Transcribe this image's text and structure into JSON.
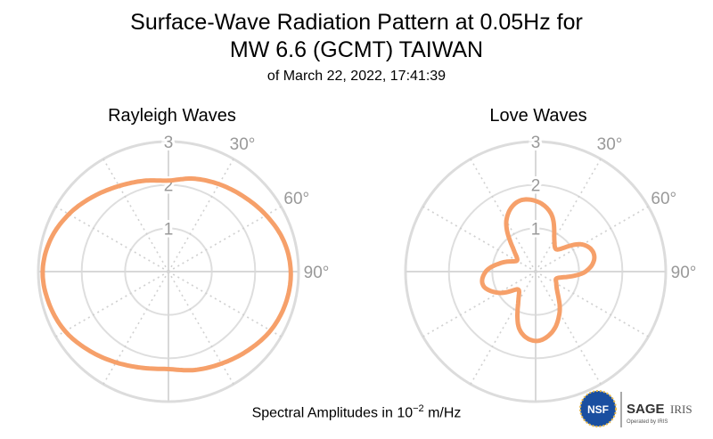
{
  "title_line1": "Surface-Wave Radiation Pattern at 0.05Hz for",
  "title_line2": "MW 6.6 (GCMT) TAIWAN",
  "subtitle": "of March 22, 2022, 17:41:39",
  "footer_prefix": "Spectral Amplitudes in 10",
  "footer_exp": "−2",
  "footer_suffix": " m/Hz",
  "logos": {
    "nsf": "NSF",
    "sage": "SAGE",
    "iris": "IRIS",
    "operated": "Operated by IRIS"
  },
  "colors": {
    "line": "#f6a06a",
    "grid_major": "#d8d8d8",
    "grid_minor": "#d0d0d0",
    "label": "#999999"
  },
  "chart_data": [
    {
      "type": "polar-line",
      "title": "Rayleigh Waves",
      "radial_ticks": [
        "1",
        "2",
        "3"
      ],
      "rmax": 3,
      "angle_ticks": [
        "30°",
        "60°",
        "90°"
      ],
      "azimuth_deg": [
        0,
        15,
        30,
        45,
        60,
        75,
        90,
        105,
        120,
        135,
        150,
        165,
        180,
        195,
        210,
        225,
        240,
        255,
        270,
        285,
        300,
        315,
        330,
        345
      ],
      "amplitude": [
        2.1,
        2.22,
        2.33,
        2.45,
        2.6,
        2.75,
        2.82,
        2.8,
        2.72,
        2.58,
        2.45,
        2.35,
        2.25,
        2.3,
        2.42,
        2.58,
        2.75,
        2.85,
        2.9,
        2.82,
        2.65,
        2.45,
        2.28,
        2.17
      ]
    },
    {
      "type": "polar-line",
      "title": "Love Waves",
      "radial_ticks": [
        "1",
        "2",
        "3"
      ],
      "rmax": 3,
      "angle_ticks": [
        "30°",
        "60°",
        "90°"
      ],
      "azimuth_deg": [
        0,
        15,
        30,
        45,
        60,
        75,
        90,
        105,
        120,
        135,
        150,
        165,
        180,
        195,
        210,
        225,
        240,
        255,
        270,
        285,
        300,
        315,
        330,
        345
      ],
      "amplitude": [
        1.63,
        1.38,
        0.86,
        0.72,
        1.25,
        1.4,
        1.15,
        0.55,
        0.55,
        0.72,
        1.1,
        1.45,
        1.6,
        1.4,
        0.8,
        0.58,
        0.98,
        1.25,
        1.15,
        0.8,
        0.5,
        0.72,
        1.35,
        1.66
      ]
    }
  ]
}
